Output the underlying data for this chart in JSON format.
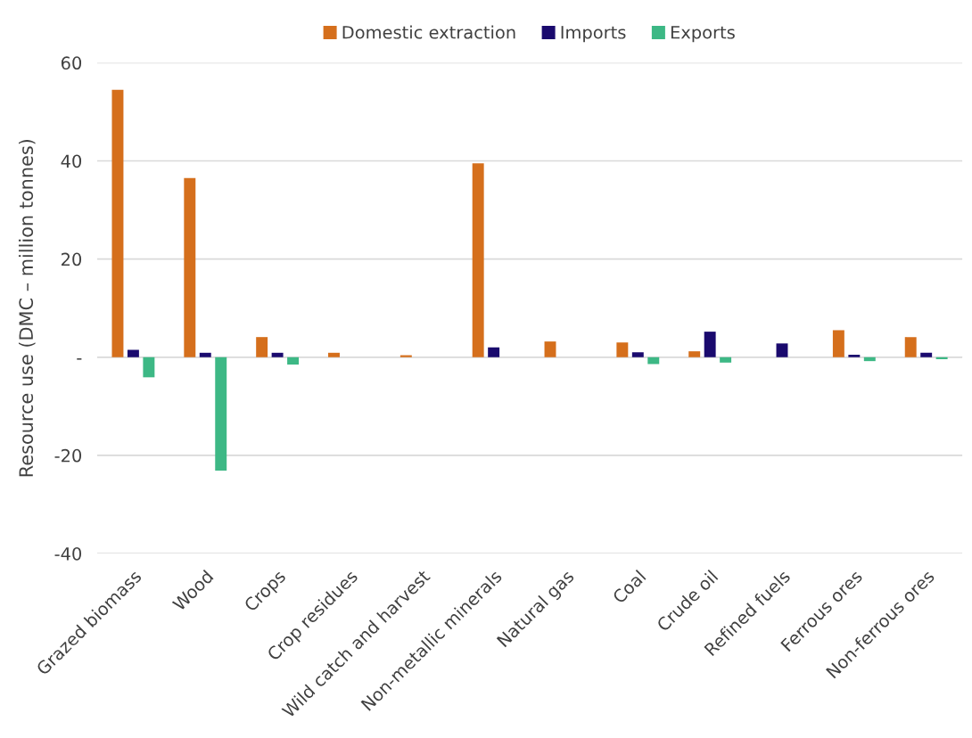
{
  "chart_data": {
    "type": "bar",
    "ylabel": "Resource use (DMC – million tonnes)",
    "categories": [
      "Grazed biomass",
      "Wood",
      "Crops",
      "Crop residues",
      "Wild catch and harvest",
      "Non-metallic minerals",
      "Natural gas",
      "Coal",
      "Crude oil",
      "Refined fuels",
      "Ferrous ores",
      "Non-ferrous ores"
    ],
    "series": [
      {
        "name": "Domestic extraction",
        "color": "#d56f1c",
        "values": [
          54.5,
          36.5,
          4.1,
          0.9,
          0.4,
          39.5,
          3.2,
          3.0,
          1.2,
          null,
          5.5,
          4.1
        ]
      },
      {
        "name": "Imports",
        "color": "#1a0a6e",
        "values": [
          1.5,
          0.9,
          0.9,
          null,
          null,
          2.0,
          null,
          1.0,
          5.2,
          2.8,
          0.5,
          0.9
        ]
      },
      {
        "name": "Exports",
        "color": "#3db885",
        "values": [
          -4.1,
          -23.1,
          -1.5,
          null,
          null,
          null,
          null,
          -1.4,
          -1.1,
          null,
          -0.8,
          -0.4
        ]
      }
    ],
    "ylim": [
      -40,
      60
    ],
    "yticks": [
      -40,
      -20,
      {
        "value": 0,
        "label": "-"
      },
      20,
      40,
      60
    ],
    "grid": "y",
    "legend": "top"
  }
}
